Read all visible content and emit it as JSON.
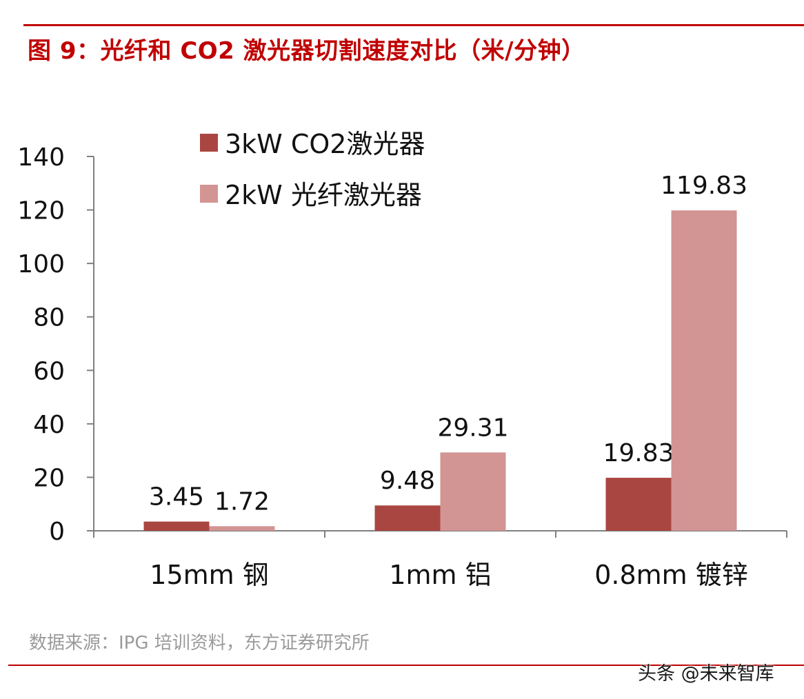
{
  "header": {
    "title": "图 9：光纤和 CO2 激光器切割速度对比（米/分钟）"
  },
  "chart_data": {
    "type": "bar",
    "categories": [
      "15mm 钢",
      "1mm 铝",
      "0.8mm 镀锌"
    ],
    "series": [
      {
        "name": "3kW CO2激光器",
        "values": [
          3.45,
          9.48,
          19.83
        ],
        "labels": [
          "3.45",
          "9.48",
          "19.83"
        ],
        "color": "#aa4641"
      },
      {
        "name": "2kW 光纤激光器",
        "values": [
          1.72,
          29.31,
          119.83
        ],
        "labels": [
          "1.72",
          "29.31",
          "119.83"
        ],
        "color": "#d39494"
      }
    ],
    "yticks": [
      "0",
      "20",
      "40",
      "60",
      "80",
      "100",
      "120",
      "140"
    ],
    "ylim": [
      0,
      140
    ],
    "grid": false,
    "legend": "top-left"
  },
  "footer": {
    "source": "数据来源：IPG 培训资料，东方证券研究所",
    "watermark": "头条 @未来智库"
  },
  "colors": {
    "accent": "#c00000",
    "axis": "#7f7f7f"
  }
}
